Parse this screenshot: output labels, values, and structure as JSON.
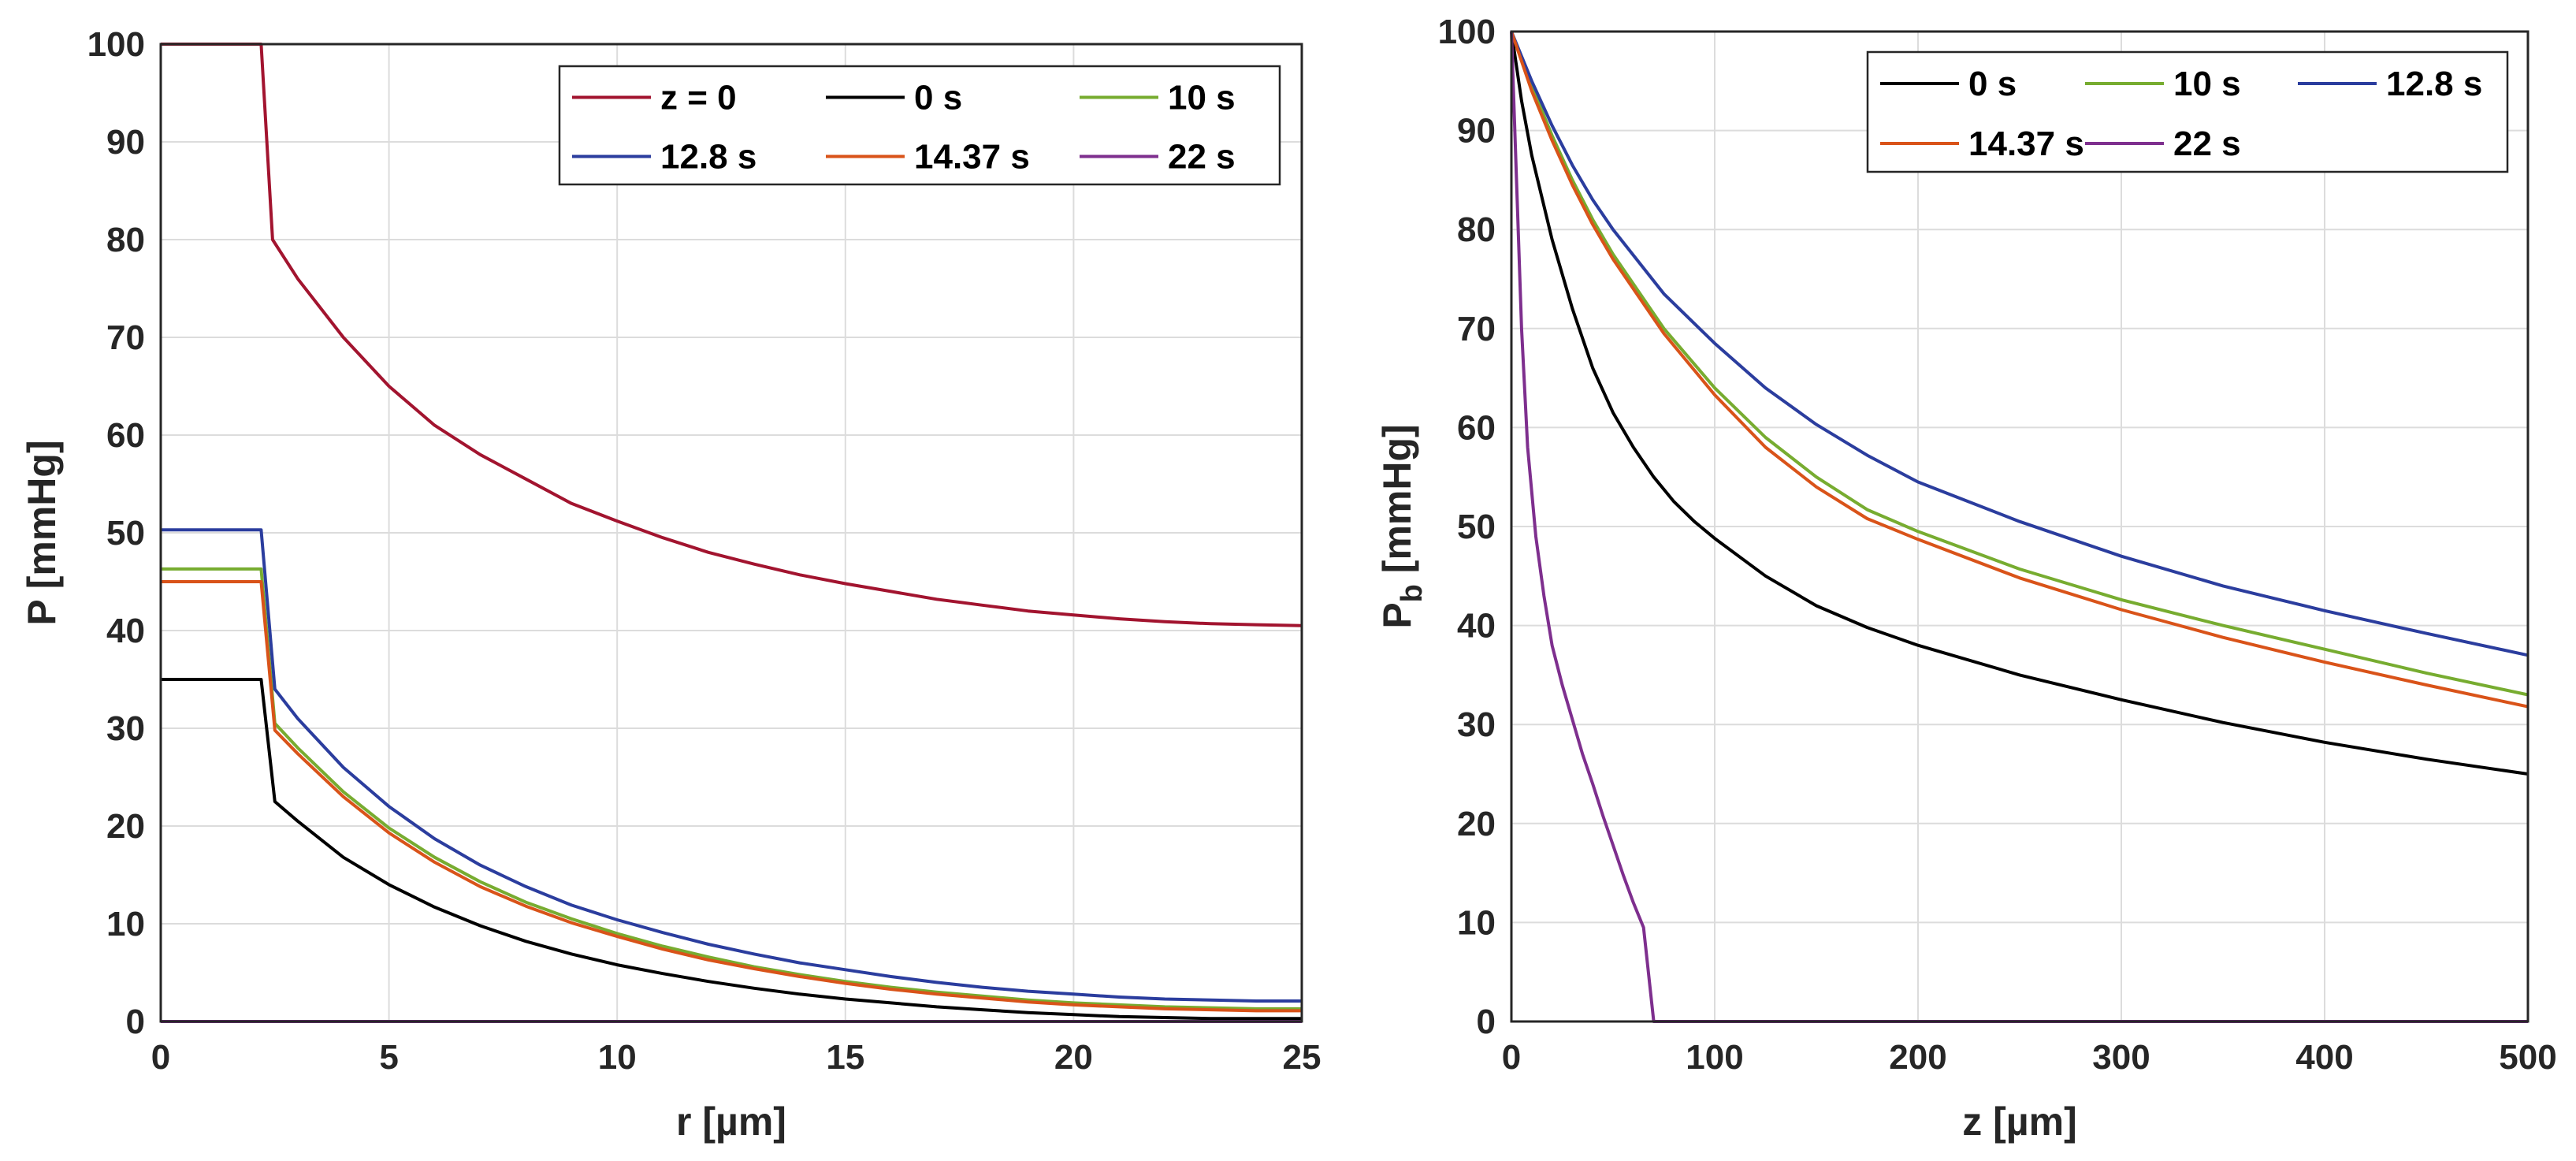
{
  "chart_data": [
    {
      "type": "line",
      "title": "",
      "xlabel": "r [µm]",
      "ylabel": "P [mmHg]",
      "xlim": [
        0,
        25
      ],
      "ylim": [
        0,
        100
      ],
      "xticks": [
        0,
        5,
        10,
        15,
        20,
        25
      ],
      "yticks": [
        0,
        10,
        20,
        30,
        40,
        50,
        60,
        70,
        80,
        90,
        100
      ],
      "grid": true,
      "legend_position": "top-right",
      "legend_columns": 3,
      "series": [
        {
          "name": "z = 0",
          "color": "#a2142f",
          "x": [
            0,
            2.2,
            2.45,
            3,
            4,
            5,
            6,
            7,
            8,
            9,
            10,
            11,
            12,
            13,
            14,
            15,
            16,
            17,
            18,
            19,
            20,
            21,
            22,
            23,
            24,
            25
          ],
          "y": [
            100,
            100,
            80,
            76,
            70,
            65,
            61,
            58,
            55.5,
            53,
            51.2,
            49.5,
            48,
            46.8,
            45.7,
            44.8,
            44,
            43.2,
            42.6,
            42,
            41.6,
            41.2,
            40.9,
            40.7,
            40.6,
            40.5
          ]
        },
        {
          "name": "0 s",
          "color": "#000000",
          "x": [
            0,
            2.2,
            2.5,
            3,
            4,
            5,
            6,
            7,
            8,
            9,
            10,
            11,
            12,
            13,
            14,
            15,
            16,
            17,
            18,
            19,
            20,
            21,
            22,
            23,
            24,
            25
          ],
          "y": [
            35,
            35,
            22.5,
            20.5,
            16.8,
            14,
            11.7,
            9.8,
            8.2,
            6.9,
            5.8,
            4.9,
            4.1,
            3.4,
            2.8,
            2.3,
            1.9,
            1.5,
            1.2,
            0.9,
            0.7,
            0.5,
            0.4,
            0.3,
            0.3,
            0.3
          ]
        },
        {
          "name": "10 s",
          "color": "#77ac30",
          "x": [
            0,
            2.2,
            2.5,
            3,
            4,
            5,
            6,
            7,
            8,
            9,
            10,
            11,
            12,
            13,
            14,
            15,
            16,
            17,
            18,
            19,
            20,
            21,
            22,
            23,
            24,
            25
          ],
          "y": [
            46.3,
            46.3,
            30.5,
            28,
            23.5,
            19.8,
            16.8,
            14.3,
            12.2,
            10.5,
            9,
            7.7,
            6.6,
            5.6,
            4.8,
            4.1,
            3.5,
            3,
            2.6,
            2.2,
            1.9,
            1.7,
            1.5,
            1.4,
            1.3,
            1.3
          ]
        },
        {
          "name": "12.8 s",
          "color": "#2b3d9e",
          "x": [
            0,
            2.2,
            2.5,
            3,
            4,
            5,
            6,
            7,
            8,
            9,
            10,
            11,
            12,
            13,
            14,
            15,
            16,
            17,
            18,
            19,
            20,
            21,
            22,
            23,
            24,
            25
          ],
          "y": [
            50.3,
            50.3,
            34,
            31,
            26,
            22,
            18.7,
            16,
            13.8,
            11.9,
            10.4,
            9.1,
            7.9,
            6.9,
            6,
            5.3,
            4.6,
            4,
            3.5,
            3.1,
            2.8,
            2.5,
            2.3,
            2.2,
            2.1,
            2.1
          ]
        },
        {
          "name": "14.37 s",
          "color": "#d95319",
          "x": [
            0,
            2.2,
            2.5,
            3,
            4,
            5,
            6,
            7,
            8,
            9,
            10,
            11,
            12,
            13,
            14,
            15,
            16,
            17,
            18,
            19,
            20,
            21,
            22,
            23,
            24,
            25
          ],
          "y": [
            45,
            45,
            29.8,
            27.4,
            23,
            19.3,
            16.3,
            13.8,
            11.8,
            10.1,
            8.7,
            7.4,
            6.3,
            5.4,
            4.6,
            3.9,
            3.3,
            2.8,
            2.4,
            2,
            1.7,
            1.5,
            1.3,
            1.2,
            1.1,
            1.1
          ]
        },
        {
          "name": "22 s",
          "color": "#7e2f8e",
          "x": [
            0,
            25
          ],
          "y": [
            0,
            0
          ]
        }
      ]
    },
    {
      "type": "line",
      "title": "",
      "xlabel": "z [µm]",
      "ylabel": "P",
      "ylabel_subscript": "b",
      "ylabel_suffix": " [mmHg]",
      "xlim": [
        0,
        500
      ],
      "ylim": [
        0,
        100
      ],
      "xticks": [
        0,
        100,
        200,
        300,
        400,
        500
      ],
      "yticks": [
        0,
        10,
        20,
        30,
        40,
        50,
        60,
        70,
        80,
        90,
        100
      ],
      "grid": true,
      "legend_position": "top-right",
      "legend_columns": 3,
      "series": [
        {
          "name": "0 s",
          "color": "#000000",
          "x": [
            0,
            5,
            10,
            20,
            30,
            40,
            50,
            60,
            70,
            80,
            90,
            100,
            125,
            150,
            175,
            200,
            250,
            300,
            350,
            400,
            450,
            500
          ],
          "y": [
            100,
            93,
            87.5,
            79,
            72,
            66,
            61.5,
            58,
            55,
            52.5,
            50.5,
            48.8,
            45,
            42,
            39.8,
            38,
            35,
            32.5,
            30.2,
            28.2,
            26.5,
            25
          ]
        },
        {
          "name": "10 s",
          "color": "#77ac30",
          "x": [
            0,
            10,
            20,
            30,
            40,
            50,
            75,
            100,
            125,
            150,
            175,
            200,
            250,
            300,
            350,
            400,
            450,
            500
          ],
          "y": [
            100,
            94.5,
            89.5,
            85,
            81,
            77.5,
            70,
            64,
            59,
            55,
            51.7,
            49.5,
            45.7,
            42.6,
            40,
            37.6,
            35.2,
            33
          ]
        },
        {
          "name": "12.8 s",
          "color": "#2b3d9e",
          "x": [
            0,
            10,
            20,
            30,
            40,
            50,
            75,
            100,
            125,
            150,
            175,
            200,
            250,
            300,
            350,
            400,
            450,
            500
          ],
          "y": [
            100,
            95,
            90.5,
            86.5,
            83,
            80,
            73.5,
            68.5,
            64,
            60.3,
            57.2,
            54.5,
            50.5,
            47,
            44,
            41.5,
            39.2,
            37
          ]
        },
        {
          "name": "14.37 s",
          "color": "#d95319",
          "x": [
            0,
            10,
            20,
            30,
            40,
            50,
            75,
            100,
            125,
            150,
            175,
            200,
            250,
            300,
            350,
            400,
            450,
            500
          ],
          "y": [
            100,
            94,
            89,
            84.5,
            80.5,
            77,
            69.5,
            63.3,
            58,
            54,
            50.8,
            48.7,
            44.8,
            41.6,
            38.8,
            36.3,
            34,
            31.8
          ]
        },
        {
          "name": "22 s",
          "color": "#7e2f8e",
          "x": [
            0,
            2,
            5,
            8,
            12,
            16,
            20,
            25,
            30,
            35,
            40,
            45,
            50,
            55,
            60,
            65,
            70,
            80,
            100,
            200,
            300,
            400,
            500
          ],
          "y": [
            100,
            88,
            70,
            58,
            49,
            43,
            38,
            34,
            30.5,
            27,
            24,
            20.8,
            17.8,
            14.8,
            12,
            9.5,
            0,
            0,
            0,
            0,
            0,
            0,
            0
          ]
        }
      ]
    }
  ]
}
